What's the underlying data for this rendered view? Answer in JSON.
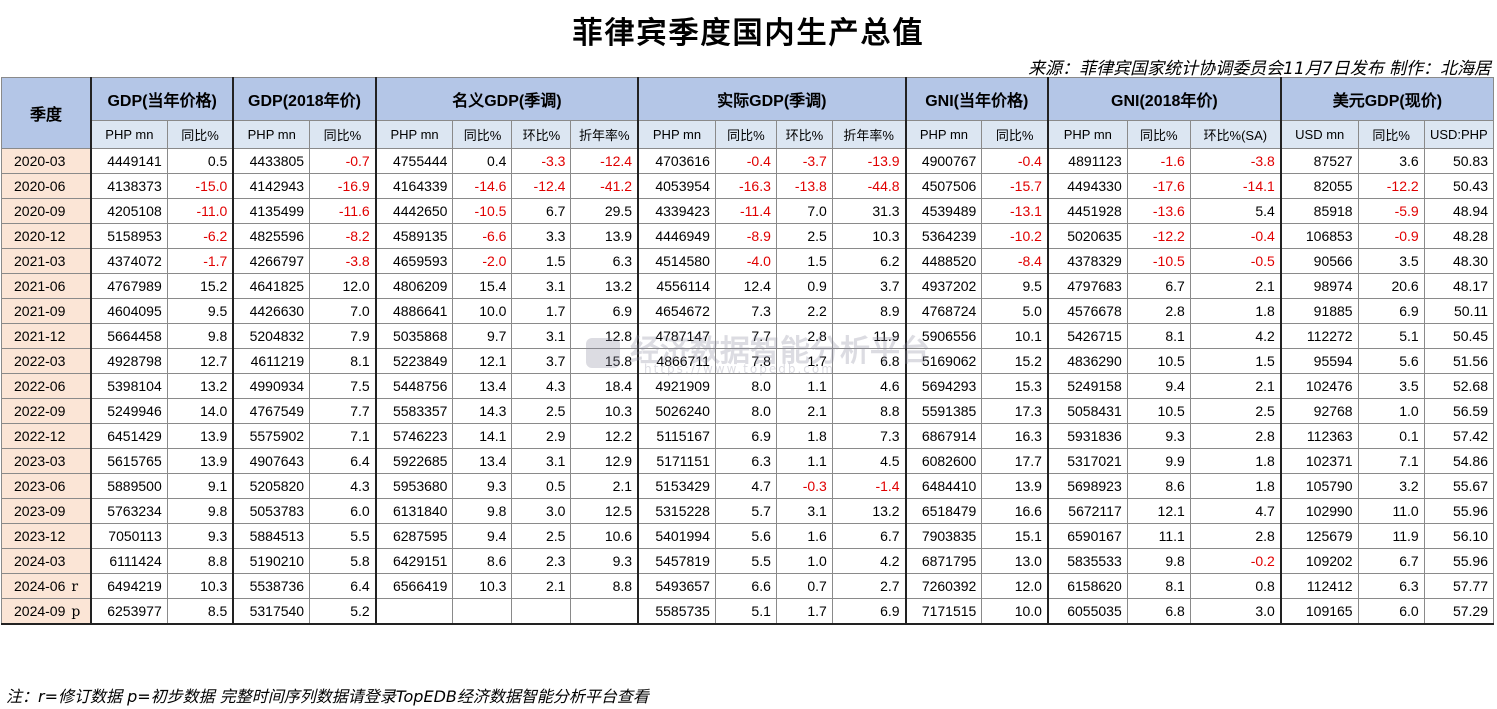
{
  "title": "菲律宾季度国内生产总值",
  "source": "来源：菲律宾国家统计协调委员会11月7日发布 制作：北海居",
  "note": "注：r=修订数据 p=初步数据 完整时间序列数据请登录TopEDB经济数据智能分析平台查看",
  "watermark": {
    "name": "经济数据智能分析平台",
    "url": "https://www.topedb.com"
  },
  "header": {
    "quarter_label": "季度",
    "groups": [
      "GDP(当年价格)",
      "GDP(2018年价)",
      "名义GDP(季调)",
      "实际GDP(季调)",
      "GNI(当年价格)",
      "GNI(2018年价)",
      "美元GDP(现价)"
    ],
    "sub": [
      "PHP mn",
      "同比%",
      "PHP mn",
      "同比%",
      "PHP mn",
      "同比%",
      "环比%",
      "折年率%",
      "PHP mn",
      "同比%",
      "环比%",
      "折年率%",
      "PHP mn",
      "同比%",
      "PHP mn",
      "同比%",
      "环比%(SA)",
      "USD mn",
      "同比%",
      "USD:PHP"
    ]
  },
  "rows": [
    {
      "q": "2020-03",
      "m": "",
      "v": [
        "4449141",
        "0.5",
        "4433805",
        "-0.7",
        "4755444",
        "0.4",
        "-3.3",
        "-12.4",
        "4703616",
        "-0.4",
        "-3.7",
        "-13.9",
        "4900767",
        "-0.4",
        "4891123",
        "-1.6",
        "-3.8",
        "87527",
        "3.6",
        "50.83"
      ]
    },
    {
      "q": "2020-06",
      "m": "",
      "v": [
        "4138373",
        "-15.0",
        "4142943",
        "-16.9",
        "4164339",
        "-14.6",
        "-12.4",
        "-41.2",
        "4053954",
        "-16.3",
        "-13.8",
        "-44.8",
        "4507506",
        "-15.7",
        "4494330",
        "-17.6",
        "-14.1",
        "82055",
        "-12.2",
        "50.43"
      ]
    },
    {
      "q": "2020-09",
      "m": "",
      "v": [
        "4205108",
        "-11.0",
        "4135499",
        "-11.6",
        "4442650",
        "-10.5",
        "6.7",
        "29.5",
        "4339423",
        "-11.4",
        "7.0",
        "31.3",
        "4539489",
        "-13.1",
        "4451928",
        "-13.6",
        "5.4",
        "85918",
        "-5.9",
        "48.94"
      ]
    },
    {
      "q": "2020-12",
      "m": "",
      "v": [
        "5158953",
        "-6.2",
        "4825596",
        "-8.2",
        "4589135",
        "-6.6",
        "3.3",
        "13.9",
        "4446949",
        "-8.9",
        "2.5",
        "10.3",
        "5364239",
        "-10.2",
        "5020635",
        "-12.2",
        "-0.4",
        "106853",
        "-0.9",
        "48.28"
      ]
    },
    {
      "q": "2021-03",
      "m": "",
      "v": [
        "4374072",
        "-1.7",
        "4266797",
        "-3.8",
        "4659593",
        "-2.0",
        "1.5",
        "6.3",
        "4514580",
        "-4.0",
        "1.5",
        "6.2",
        "4488520",
        "-8.4",
        "4378329",
        "-10.5",
        "-0.5",
        "90566",
        "3.5",
        "48.30"
      ]
    },
    {
      "q": "2021-06",
      "m": "",
      "v": [
        "4767989",
        "15.2",
        "4641825",
        "12.0",
        "4806209",
        "15.4",
        "3.1",
        "13.2",
        "4556114",
        "12.4",
        "0.9",
        "3.7",
        "4937202",
        "9.5",
        "4797683",
        "6.7",
        "2.1",
        "98974",
        "20.6",
        "48.17"
      ]
    },
    {
      "q": "2021-09",
      "m": "",
      "v": [
        "4604095",
        "9.5",
        "4426630",
        "7.0",
        "4886641",
        "10.0",
        "1.7",
        "6.9",
        "4654672",
        "7.3",
        "2.2",
        "8.9",
        "4768724",
        "5.0",
        "4576678",
        "2.8",
        "1.8",
        "91885",
        "6.9",
        "50.11"
      ]
    },
    {
      "q": "2021-12",
      "m": "",
      "v": [
        "5664458",
        "9.8",
        "5204832",
        "7.9",
        "5035868",
        "9.7",
        "3.1",
        "12.8",
        "4787147",
        "7.7",
        "2.8",
        "11.9",
        "5906556",
        "10.1",
        "5426715",
        "8.1",
        "4.2",
        "112272",
        "5.1",
        "50.45"
      ]
    },
    {
      "q": "2022-03",
      "m": "",
      "v": [
        "4928798",
        "12.7",
        "4611219",
        "8.1",
        "5223849",
        "12.1",
        "3.7",
        "15.8",
        "4866711",
        "7.8",
        "1.7",
        "6.8",
        "5169062",
        "15.2",
        "4836290",
        "10.5",
        "1.5",
        "95594",
        "5.6",
        "51.56"
      ]
    },
    {
      "q": "2022-06",
      "m": "",
      "v": [
        "5398104",
        "13.2",
        "4990934",
        "7.5",
        "5448756",
        "13.4",
        "4.3",
        "18.4",
        "4921909",
        "8.0",
        "1.1",
        "4.6",
        "5694293",
        "15.3",
        "5249158",
        "9.4",
        "2.1",
        "102476",
        "3.5",
        "52.68"
      ]
    },
    {
      "q": "2022-09",
      "m": "",
      "v": [
        "5249946",
        "14.0",
        "4767549",
        "7.7",
        "5583357",
        "14.3",
        "2.5",
        "10.3",
        "5026240",
        "8.0",
        "2.1",
        "8.8",
        "5591385",
        "17.3",
        "5058431",
        "10.5",
        "2.5",
        "92768",
        "1.0",
        "56.59"
      ]
    },
    {
      "q": "2022-12",
      "m": "",
      "v": [
        "6451429",
        "13.9",
        "5575902",
        "7.1",
        "5746223",
        "14.1",
        "2.9",
        "12.2",
        "5115167",
        "6.9",
        "1.8",
        "7.3",
        "6867914",
        "16.3",
        "5931836",
        "9.3",
        "2.8",
        "112363",
        "0.1",
        "57.42"
      ]
    },
    {
      "q": "2023-03",
      "m": "",
      "v": [
        "5615765",
        "13.9",
        "4907643",
        "6.4",
        "5922685",
        "13.4",
        "3.1",
        "12.9",
        "5171151",
        "6.3",
        "1.1",
        "4.5",
        "6082600",
        "17.7",
        "5317021",
        "9.9",
        "1.8",
        "102371",
        "7.1",
        "54.86"
      ]
    },
    {
      "q": "2023-06",
      "m": "",
      "v": [
        "5889500",
        "9.1",
        "5205820",
        "4.3",
        "5953680",
        "9.3",
        "0.5",
        "2.1",
        "5153429",
        "4.7",
        "-0.3",
        "-1.4",
        "6484410",
        "13.9",
        "5698923",
        "8.6",
        "1.8",
        "105790",
        "3.2",
        "55.67"
      ]
    },
    {
      "q": "2023-09",
      "m": "",
      "v": [
        "5763234",
        "9.8",
        "5053783",
        "6.0",
        "6131840",
        "9.8",
        "3.0",
        "12.5",
        "5315228",
        "5.7",
        "3.1",
        "13.2",
        "6518479",
        "16.6",
        "5672117",
        "12.1",
        "4.7",
        "102990",
        "11.0",
        "55.96"
      ]
    },
    {
      "q": "2023-12",
      "m": "",
      "v": [
        "7050113",
        "9.3",
        "5884513",
        "5.5",
        "6287595",
        "9.4",
        "2.5",
        "10.6",
        "5401994",
        "5.6",
        "1.6",
        "6.7",
        "7903835",
        "15.1",
        "6590167",
        "11.1",
        "2.8",
        "125679",
        "11.9",
        "56.10"
      ]
    },
    {
      "q": "2024-03",
      "m": "",
      "v": [
        "6111424",
        "8.8",
        "5190210",
        "5.8",
        "6429151",
        "8.6",
        "2.3",
        "9.3",
        "5457819",
        "5.5",
        "1.0",
        "4.2",
        "6871795",
        "13.0",
        "5835533",
        "9.8",
        "-0.2",
        "109202",
        "6.7",
        "55.96"
      ]
    },
    {
      "q": "2024-06",
      "m": "r",
      "v": [
        "6494219",
        "10.3",
        "5538736",
        "6.4",
        "6566419",
        "10.3",
        "2.1",
        "8.8",
        "5493657",
        "6.6",
        "0.7",
        "2.7",
        "7260392",
        "12.0",
        "6158620",
        "8.1",
        "0.8",
        "112412",
        "6.3",
        "57.77"
      ]
    },
    {
      "q": "2024-09",
      "m": "p",
      "v": [
        "6253977",
        "8.5",
        "5317540",
        "5.2",
        "",
        "",
        "",
        "",
        "5585735",
        "5.1",
        "1.7",
        "6.9",
        "7171515",
        "10.0",
        "6055035",
        "6.8",
        "3.0",
        "109165",
        "6.0",
        "57.29"
      ]
    }
  ]
}
